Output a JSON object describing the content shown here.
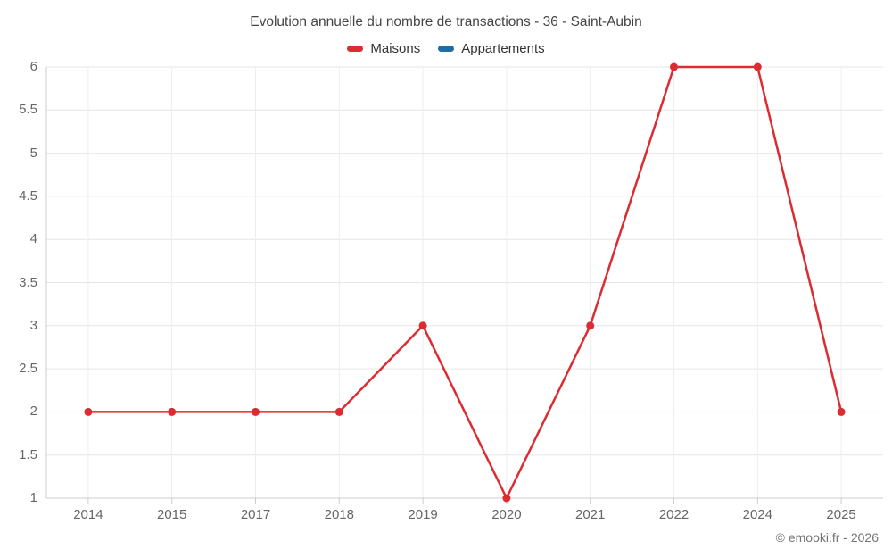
{
  "header": {
    "title": "Evolution annuelle du nombre de transactions - 36 - Saint-Aubin"
  },
  "legend": {
    "items": [
      {
        "label": "Maisons",
        "color": "#dc2c31"
      },
      {
        "label": "Appartements",
        "color": "#1b6ca8"
      }
    ]
  },
  "footer": {
    "credit": "© emooki.fr - 2026"
  },
  "colors": {
    "grid_horizontal": "#e6e6e6",
    "grid_vertical": "#ededed",
    "axis": "#cccccc",
    "tick_label": "#666666",
    "title_text": "#454545"
  },
  "chart_data": {
    "type": "line",
    "title": "Evolution annuelle du nombre de transactions - 36 - Saint-Aubin",
    "xlabel": "",
    "ylabel": "",
    "categories": [
      "2014",
      "2015",
      "2017",
      "2018",
      "2019",
      "2020",
      "2021",
      "2022",
      "2024",
      "2025"
    ],
    "series": [
      {
        "name": "Maisons",
        "color": "#dc2c31",
        "values": [
          2,
          2,
          2,
          2,
          3,
          1,
          3,
          6,
          6,
          2
        ]
      },
      {
        "name": "Appartements",
        "color": "#1b6ca8",
        "values": []
      }
    ],
    "ylim": [
      1,
      6
    ],
    "yticks": [
      1,
      1.5,
      2,
      2.5,
      3,
      3.5,
      4,
      4.5,
      5,
      5.5,
      6
    ],
    "grid": true,
    "legend_position": "top"
  }
}
